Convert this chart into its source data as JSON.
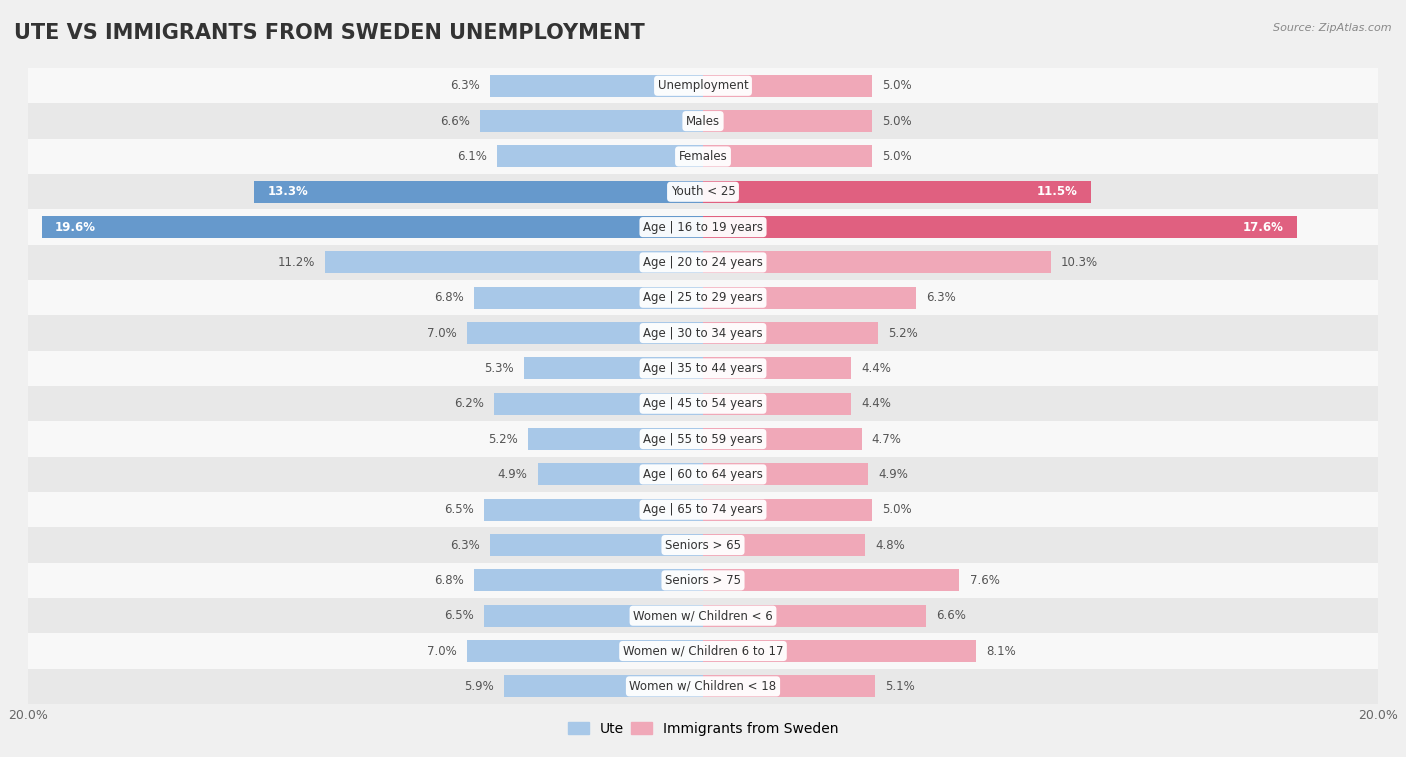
{
  "title": "UTE VS IMMIGRANTS FROM SWEDEN UNEMPLOYMENT",
  "source": "Source: ZipAtlas.com",
  "categories": [
    "Unemployment",
    "Males",
    "Females",
    "Youth < 25",
    "Age | 16 to 19 years",
    "Age | 20 to 24 years",
    "Age | 25 to 29 years",
    "Age | 30 to 34 years",
    "Age | 35 to 44 years",
    "Age | 45 to 54 years",
    "Age | 55 to 59 years",
    "Age | 60 to 64 years",
    "Age | 65 to 74 years",
    "Seniors > 65",
    "Seniors > 75",
    "Women w/ Children < 6",
    "Women w/ Children 6 to 17",
    "Women w/ Children < 18"
  ],
  "ute_values": [
    6.3,
    6.6,
    6.1,
    13.3,
    19.6,
    11.2,
    6.8,
    7.0,
    5.3,
    6.2,
    5.2,
    4.9,
    6.5,
    6.3,
    6.8,
    6.5,
    7.0,
    5.9
  ],
  "sweden_values": [
    5.0,
    5.0,
    5.0,
    11.5,
    17.6,
    10.3,
    6.3,
    5.2,
    4.4,
    4.4,
    4.7,
    4.9,
    5.0,
    4.8,
    7.6,
    6.6,
    8.1,
    5.1
  ],
  "ute_color_normal": "#a8c8e8",
  "ute_color_highlight": "#6699cc",
  "sweden_color_normal": "#f0a8b8",
  "sweden_color_highlight": "#e06080",
  "bar_height": 0.62,
  "xlim": 20.0,
  "background_color": "#f0f0f0",
  "row_light": "#f8f8f8",
  "row_dark": "#e8e8e8",
  "title_fontsize": 15,
  "label_fontsize": 8.5,
  "value_fontsize": 8.5,
  "legend_fontsize": 10,
  "highlight_threshold_ute": 13.0,
  "highlight_threshold_sweden": 11.0
}
